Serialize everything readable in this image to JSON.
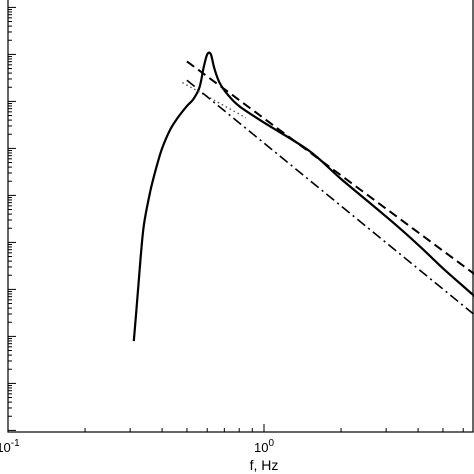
{
  "chart_data": {
    "type": "line",
    "xlabel": "f, Hz",
    "x_scale": "log",
    "y_scale": "log",
    "xlim": [
      0.1,
      8.0
    ],
    "ylim_decades_visible": 9,
    "x_tick_labels": [
      {
        "value": 0.1,
        "base": "10",
        "exp": "-1"
      },
      {
        "value": 1.0,
        "base": "10",
        "exp": "0"
      }
    ],
    "series": [
      {
        "style": "solid",
        "points": [
          [
            0.31,
            -8.1
          ],
          [
            0.32,
            -7.2
          ],
          [
            0.33,
            -6.3
          ],
          [
            0.34,
            -5.6
          ],
          [
            0.36,
            -4.9
          ],
          [
            0.38,
            -4.4
          ],
          [
            0.4,
            -4.0
          ],
          [
            0.43,
            -3.6
          ],
          [
            0.46,
            -3.35
          ],
          [
            0.5,
            -3.1
          ],
          [
            0.53,
            -2.95
          ],
          [
            0.56,
            -2.7
          ],
          [
            0.58,
            -2.3
          ],
          [
            0.6,
            -2.0
          ],
          [
            0.62,
            -2.0
          ],
          [
            0.64,
            -2.3
          ],
          [
            0.67,
            -2.6
          ],
          [
            0.72,
            -2.85
          ],
          [
            0.8,
            -3.1
          ],
          [
            1.0,
            -3.45
          ],
          [
            1.5,
            -4.05
          ],
          [
            2.0,
            -4.65
          ],
          [
            3.0,
            -5.45
          ],
          [
            4.0,
            -6.05
          ],
          [
            5.0,
            -6.55
          ],
          [
            6.5,
            -7.1
          ],
          [
            8.0,
            -7.55
          ]
        ]
      },
      {
        "style": "dotted",
        "points": [
          [
            0.48,
            -2.6
          ],
          [
            0.85,
            -3.35
          ]
        ]
      },
      {
        "style": "dashed",
        "points": [
          [
            0.5,
            -2.15
          ],
          [
            8.0,
            -7.0
          ]
        ]
      },
      {
        "style": "dash-dot",
        "points": [
          [
            0.5,
            -2.55
          ],
          [
            8.0,
            -7.9
          ]
        ]
      }
    ]
  }
}
